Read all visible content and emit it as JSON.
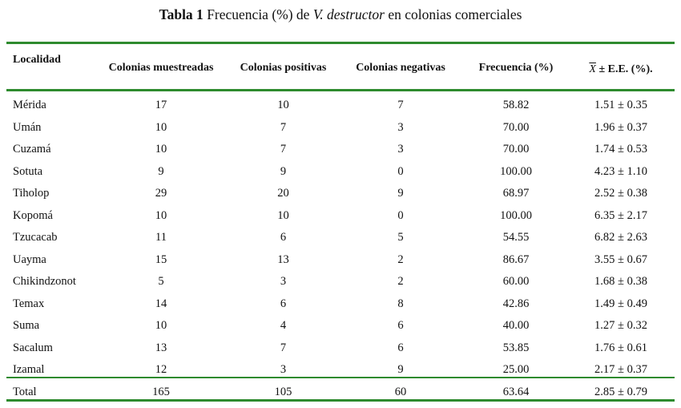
{
  "caption": {
    "label": "Tabla 1",
    "pre": " Frecuencia (%) de ",
    "italic": "V. destructor",
    "post": " en colonias comerciales"
  },
  "columns": [
    "Localidad",
    "Colonias muestreadas",
    "Colonias positivas",
    "Colonias negativas",
    "Frecuencia (%)",
    "± E.E. (%)."
  ],
  "mean_symbol": "X",
  "rows": [
    [
      "Mérida",
      "17",
      "10",
      "7",
      "58.82",
      "1.51 ± 0.35"
    ],
    [
      "Umán",
      "10",
      "7",
      "3",
      "70.00",
      "1.96 ± 0.37"
    ],
    [
      "Cuzamá",
      "10",
      "7",
      "3",
      "70.00",
      "1.74 ± 0.53"
    ],
    [
      "Sotuta",
      "9",
      "9",
      "0",
      "100.00",
      "4.23 ± 1.10"
    ],
    [
      "Tiholop",
      "29",
      "20",
      "9",
      "68.97",
      "2.52 ± 0.38"
    ],
    [
      "Kopomá",
      "10",
      "10",
      "0",
      "100.00",
      "6.35 ± 2.17"
    ],
    [
      "Tzucacab",
      "11",
      "6",
      "5",
      "54.55",
      "6.82 ± 2.63"
    ],
    [
      "Uayma",
      "15",
      "13",
      "2",
      "86.67",
      "3.55 ± 0.67"
    ],
    [
      "Chikindzonot",
      "5",
      "3",
      "2",
      "60.00",
      "1.68 ± 0.38"
    ],
    [
      "Temax",
      "14",
      "6",
      "8",
      "42.86",
      "1.49 ± 0.49"
    ],
    [
      "Suma",
      "10",
      "4",
      "6",
      "40.00",
      "1.27 ± 0.32"
    ],
    [
      "Sacalum",
      "13",
      "7",
      "6",
      "53.85",
      "1.76 ± 0.61"
    ],
    [
      "Izamal",
      "12",
      "3",
      "9",
      "25.00",
      "2.17 ± 0.37"
    ]
  ],
  "total": [
    "Total",
    "165",
    "105",
    "60",
    "63.64",
    "2.85 ± 0.79"
  ]
}
